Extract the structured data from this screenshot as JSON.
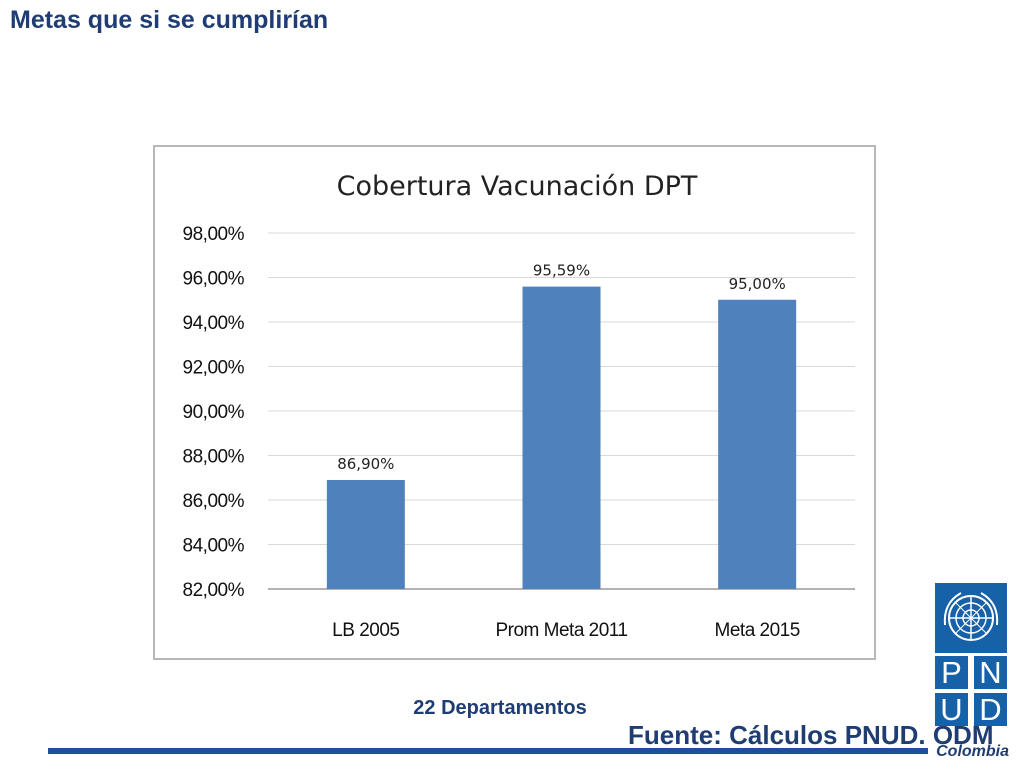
{
  "slide": {
    "title": "Metas que si se cumplirían",
    "note": "22 Departamentos",
    "source": "Fuente: Cálculos PNUD. ODM"
  },
  "logo": {
    "letters": [
      "P",
      "N",
      "U",
      "D"
    ],
    "country": "Colombia",
    "emblem_icon": "un-emblem-icon",
    "color": "#1661a8"
  },
  "chart_data": {
    "type": "bar",
    "title": "Cobertura Vacunación DPT",
    "categories": [
      "LB 2005",
      "Prom Meta 2011",
      "Meta 2015"
    ],
    "values": [
      86.9,
      95.59,
      95.0
    ],
    "data_labels": [
      "86,90%",
      "95,59%",
      "95,00%"
    ],
    "ylim": [
      82,
      98
    ],
    "yticks": [
      82,
      84,
      86,
      88,
      90,
      92,
      94,
      96,
      98
    ],
    "ytick_labels": [
      "82,00%",
      "84,00%",
      "86,00%",
      "88,00%",
      "90,00%",
      "92,00%",
      "94,00%",
      "96,00%",
      "98,00%"
    ],
    "grid": true,
    "legend": "none",
    "bar_color": "#4f81bd",
    "xlabel": "",
    "ylabel": ""
  }
}
